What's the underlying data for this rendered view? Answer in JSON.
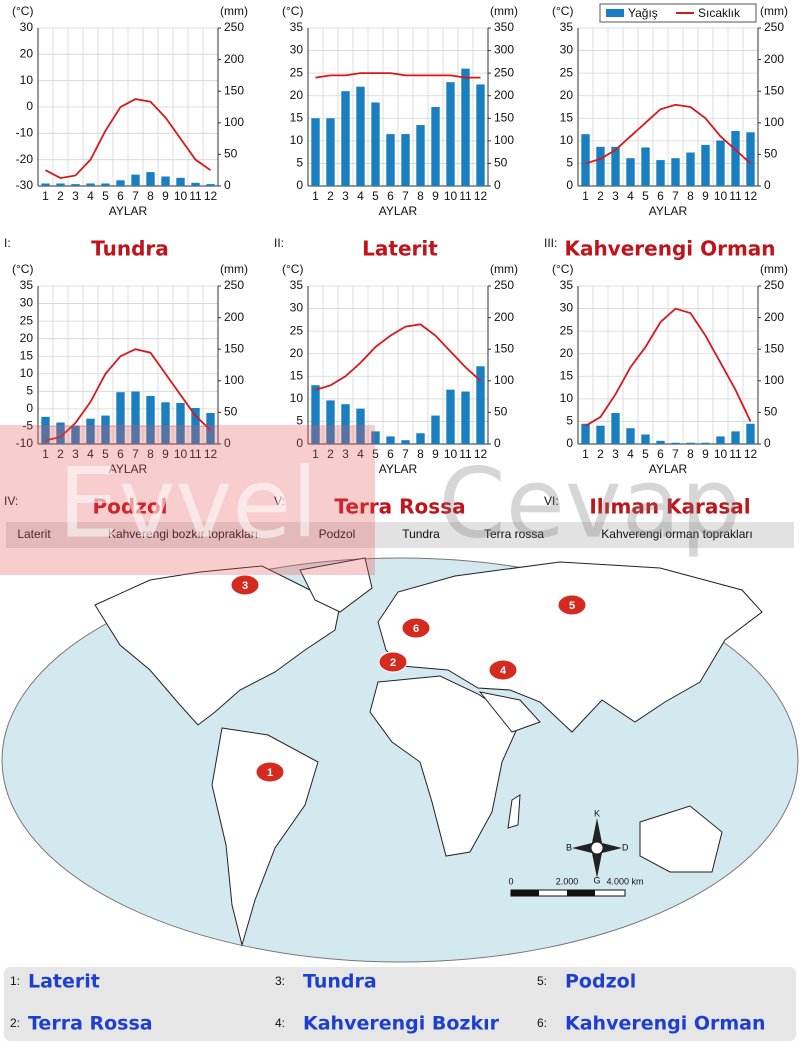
{
  "chart_data": [
    {
      "type": "combo",
      "numeral": "I:",
      "title": "Tundra",
      "y_label": "(°C)",
      "y2_label": "(mm)",
      "x_label": "AYLAR",
      "categories": [
        "1",
        "2",
        "3",
        "4",
        "5",
        "6",
        "7",
        "8",
        "9",
        "10",
        "11",
        "12"
      ],
      "ylim": [
        -30,
        30
      ],
      "yticks": [
        -30,
        -20,
        -10,
        0,
        10,
        20,
        30
      ],
      "y2lim": [
        0,
        250
      ],
      "y2ticks": [
        0,
        50,
        100,
        150,
        200,
        250
      ],
      "grid": true,
      "series": [
        {
          "type": "bar",
          "axis": "y2",
          "color": "#1a7fc1",
          "values": [
            4,
            4,
            3,
            4,
            4,
            9,
            18,
            22,
            15,
            13,
            5,
            3
          ]
        },
        {
          "type": "line",
          "color": "#d7191c",
          "values": [
            -24,
            -27,
            -26,
            -20,
            -9,
            0,
            3,
            2,
            -4,
            -12,
            -20,
            -24
          ]
        }
      ]
    },
    {
      "type": "combo",
      "numeral": "II:",
      "title": "Laterit",
      "y_label": "(°C)",
      "y2_label": "(mm)",
      "x_label": "AYLAR",
      "categories": [
        "1",
        "2",
        "3",
        "4",
        "5",
        "6",
        "7",
        "8",
        "9",
        "10",
        "11",
        "12"
      ],
      "ylim": [
        0,
        35
      ],
      "yticks": [
        0,
        5,
        10,
        15,
        20,
        25,
        30,
        35
      ],
      "y2lim": [
        0,
        350
      ],
      "y2ticks": [
        0,
        50,
        100,
        150,
        200,
        250,
        300,
        350
      ],
      "grid": true,
      "series": [
        {
          "type": "bar",
          "axis": "y2",
          "color": "#1a7fc1",
          "values": [
            150,
            150,
            210,
            220,
            185,
            115,
            115,
            135,
            175,
            230,
            260,
            225
          ]
        },
        {
          "type": "line",
          "color": "#d7191c",
          "values": [
            24,
            24.5,
            24.5,
            25,
            25,
            25,
            24.5,
            24.5,
            24.5,
            24.5,
            24,
            24
          ]
        }
      ]
    },
    {
      "type": "combo",
      "numeral": "III:",
      "title": "Kahverengi Orman",
      "y_label": "(°C)",
      "y2_label": "(mm)",
      "x_label": "AYLAR",
      "categories": [
        "1",
        "2",
        "3",
        "4",
        "5",
        "6",
        "7",
        "8",
        "9",
        "10",
        "11",
        "12"
      ],
      "ylim": [
        0,
        35
      ],
      "yticks": [
        0,
        5,
        10,
        15,
        20,
        25,
        30,
        35
      ],
      "y2lim": [
        0,
        250
      ],
      "y2ticks": [
        0,
        50,
        100,
        150,
        200,
        250
      ],
      "grid": true,
      "legend": "upper right",
      "series": [
        {
          "type": "bar",
          "axis": "y2",
          "name": "Yağış",
          "color": "#1a7fc1",
          "values": [
            82,
            62,
            62,
            44,
            61,
            41,
            44,
            53,
            65,
            72,
            87,
            85
          ]
        },
        {
          "type": "line",
          "name": "Sıcaklık",
          "color": "#d7191c",
          "values": [
            5,
            6,
            8,
            11,
            14,
            17,
            18,
            17.5,
            15,
            11,
            8,
            5
          ]
        }
      ]
    },
    {
      "type": "combo",
      "numeral": "IV:",
      "title": "Podzol",
      "y_label": "(°C)",
      "y2_label": "(mm)",
      "x_label": "AYLAR",
      "categories": [
        "1",
        "2",
        "3",
        "4",
        "5",
        "6",
        "7",
        "8",
        "9",
        "10",
        "11",
        "12"
      ],
      "ylim": [
        -10,
        35
      ],
      "yticks": [
        -10,
        -5,
        0,
        5,
        10,
        15,
        20,
        25,
        30,
        35
      ],
      "y2lim": [
        0,
        250
      ],
      "y2ticks": [
        0,
        50,
        100,
        150,
        200,
        250
      ],
      "grid": true,
      "series": [
        {
          "type": "bar",
          "axis": "y2",
          "color": "#1a7fc1",
          "values": [
            43,
            34,
            29,
            40,
            45,
            82,
            83,
            76,
            66,
            65,
            57,
            49
          ]
        },
        {
          "type": "line",
          "color": "#d7191c",
          "values": [
            -9,
            -8,
            -4,
            2,
            10,
            15,
            17,
            16,
            10,
            4,
            -2,
            -6
          ]
        }
      ]
    },
    {
      "type": "combo",
      "numeral": "V:",
      "title": "Terra Rossa",
      "y_label": "(°C)",
      "y2_label": "(mm)",
      "x_label": "AYLAR",
      "categories": [
        "1",
        "2",
        "3",
        "4",
        "5",
        "6",
        "7",
        "8",
        "9",
        "10",
        "11",
        "12"
      ],
      "ylim": [
        0,
        35
      ],
      "yticks": [
        0,
        5,
        10,
        15,
        20,
        25,
        30,
        35
      ],
      "y2lim": [
        0,
        250
      ],
      "y2ticks": [
        0,
        50,
        100,
        150,
        200,
        250
      ],
      "grid": true,
      "series": [
        {
          "type": "bar",
          "axis": "y2",
          "color": "#1a7fc1",
          "values": [
            93,
            69,
            63,
            56,
            20,
            12,
            6,
            17,
            45,
            86,
            83,
            123
          ]
        },
        {
          "type": "line",
          "color": "#d7191c",
          "values": [
            12,
            13,
            15,
            18,
            21.5,
            24,
            26,
            26.5,
            24,
            20.5,
            17,
            14
          ]
        }
      ]
    },
    {
      "type": "combo",
      "numeral": "VI:",
      "title": "Ilıman Karasal",
      "y_label": "(°C)",
      "y2_label": "(mm)",
      "x_label": "AYLAR",
      "categories": [
        "1",
        "2",
        "3",
        "4",
        "5",
        "6",
        "7",
        "8",
        "9",
        "10",
        "11",
        "12"
      ],
      "ylim": [
        0,
        35
      ],
      "yticks": [
        0,
        5,
        10,
        15,
        20,
        25,
        30,
        35
      ],
      "y2lim": [
        0,
        250
      ],
      "y2ticks": [
        0,
        50,
        100,
        150,
        200,
        250
      ],
      "grid": true,
      "series": [
        {
          "type": "bar",
          "axis": "y2",
          "color": "#1a7fc1",
          "values": [
            32,
            29,
            49,
            25,
            15,
            5,
            2,
            2,
            2,
            12,
            20,
            32
          ]
        },
        {
          "type": "line",
          "color": "#d7191c",
          "values": [
            4,
            6,
            11,
            17,
            21.5,
            27,
            30,
            29,
            24,
            18,
            12,
            5
          ]
        }
      ]
    }
  ],
  "word_bank": [
    "Laterit",
    "Kahverengi bozkır toprakları",
    "Podzol",
    "Tundra",
    "Terra rossa",
    "Kahverengi orman toprakları"
  ],
  "map": {
    "markers": [
      "1",
      "2",
      "3",
      "4",
      "5",
      "6"
    ],
    "compass": [
      "K",
      "B",
      "D",
      "G"
    ],
    "scale": [
      "0",
      "2.000",
      "4.000 km"
    ]
  },
  "answers": [
    {
      "number": "1:",
      "text": "Laterit"
    },
    {
      "number": "2:",
      "text": "Terra Rossa"
    },
    {
      "number": "3:",
      "text": "Tundra"
    },
    {
      "number": "4:",
      "text": "Kahverengi Bozkır"
    },
    {
      "number": "5:",
      "text": "Podzol"
    },
    {
      "number": "6:",
      "text": "Kahverengi Orman"
    }
  ],
  "watermark": [
    "Evvel",
    "Cevap"
  ]
}
